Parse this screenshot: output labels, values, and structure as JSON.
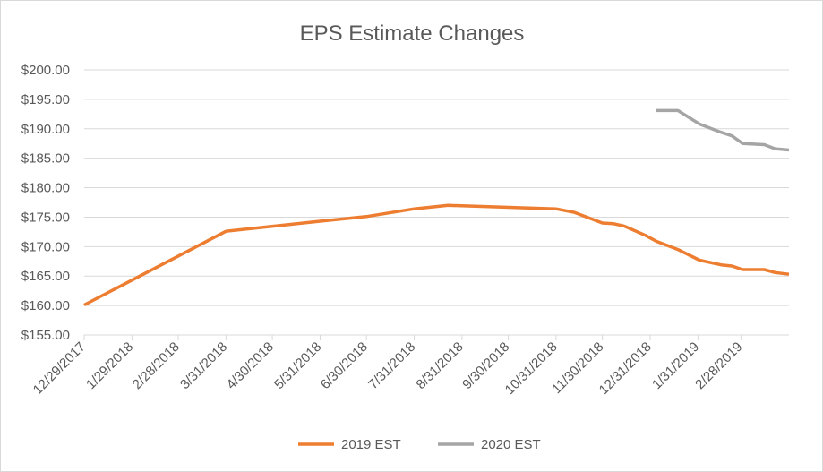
{
  "chart_data": {
    "type": "line",
    "title": "EPS Estimate Changes",
    "xlabel": "",
    "ylabel": "",
    "ylim": [
      155,
      200
    ],
    "xlim": [
      "2017-12-29",
      "2019-03-31"
    ],
    "grid": true,
    "legend": "bottom",
    "y_ticks": [
      "$155.00",
      "$160.00",
      "$165.00",
      "$170.00",
      "$175.00",
      "$180.00",
      "$185.00",
      "$190.00",
      "$195.00",
      "$200.00"
    ],
    "x_ticks": [
      {
        "date": "2017-12-29",
        "label": "12/29/2017"
      },
      {
        "date": "2018-01-29",
        "label": "1/29/2018"
      },
      {
        "date": "2018-02-28",
        "label": "2/28/2018"
      },
      {
        "date": "2018-03-31",
        "label": "3/31/2018"
      },
      {
        "date": "2018-04-30",
        "label": "4/30/2018"
      },
      {
        "date": "2018-05-31",
        "label": "5/31/2018"
      },
      {
        "date": "2018-06-30",
        "label": "6/30/2018"
      },
      {
        "date": "2018-07-31",
        "label": "7/31/2018"
      },
      {
        "date": "2018-08-31",
        "label": "8/31/2018"
      },
      {
        "date": "2018-09-30",
        "label": "9/30/2018"
      },
      {
        "date": "2018-10-31",
        "label": "10/31/2018"
      },
      {
        "date": "2018-11-30",
        "label": "11/30/2018"
      },
      {
        "date": "2018-12-31",
        "label": "12/31/2018"
      },
      {
        "date": "2019-01-31",
        "label": "1/31/2019"
      },
      {
        "date": "2019-02-28",
        "label": "2/28/2019"
      }
    ],
    "series": [
      {
        "name": "2019 EST",
        "color": "#ed7d31",
        "points": [
          {
            "x": "2017-12-29",
            "y": 160.1
          },
          {
            "x": "2018-03-31",
            "y": 172.6
          },
          {
            "x": "2018-05-31",
            "y": 174.3
          },
          {
            "x": "2018-06-30",
            "y": 175.1
          },
          {
            "x": "2018-07-31",
            "y": 176.4
          },
          {
            "x": "2018-08-22",
            "y": 177.0
          },
          {
            "x": "2018-10-31",
            "y": 176.4
          },
          {
            "x": "2018-11-12",
            "y": 175.8
          },
          {
            "x": "2018-11-30",
            "y": 174.0
          },
          {
            "x": "2018-12-07",
            "y": 173.9
          },
          {
            "x": "2018-12-14",
            "y": 173.5
          },
          {
            "x": "2018-12-28",
            "y": 171.9
          },
          {
            "x": "2019-01-04",
            "y": 170.9
          },
          {
            "x": "2019-01-18",
            "y": 169.5
          },
          {
            "x": "2019-02-01",
            "y": 167.7
          },
          {
            "x": "2019-02-15",
            "y": 166.9
          },
          {
            "x": "2019-02-22",
            "y": 166.7
          },
          {
            "x": "2019-03-01",
            "y": 166.1
          },
          {
            "x": "2019-03-15",
            "y": 166.1
          },
          {
            "x": "2019-03-22",
            "y": 165.6
          },
          {
            "x": "2019-03-31",
            "y": 165.3
          }
        ]
      },
      {
        "name": "2020 EST",
        "color": "#a5a5a5",
        "points": [
          {
            "x": "2019-01-04",
            "y": 193.1
          },
          {
            "x": "2019-01-18",
            "y": 193.1
          },
          {
            "x": "2019-02-01",
            "y": 190.8
          },
          {
            "x": "2019-02-15",
            "y": 189.4
          },
          {
            "x": "2019-02-22",
            "y": 188.8
          },
          {
            "x": "2019-03-01",
            "y": 187.5
          },
          {
            "x": "2019-03-08",
            "y": 187.4
          },
          {
            "x": "2019-03-15",
            "y": 187.3
          },
          {
            "x": "2019-03-22",
            "y": 186.6
          },
          {
            "x": "2019-03-31",
            "y": 186.4
          }
        ]
      }
    ]
  }
}
